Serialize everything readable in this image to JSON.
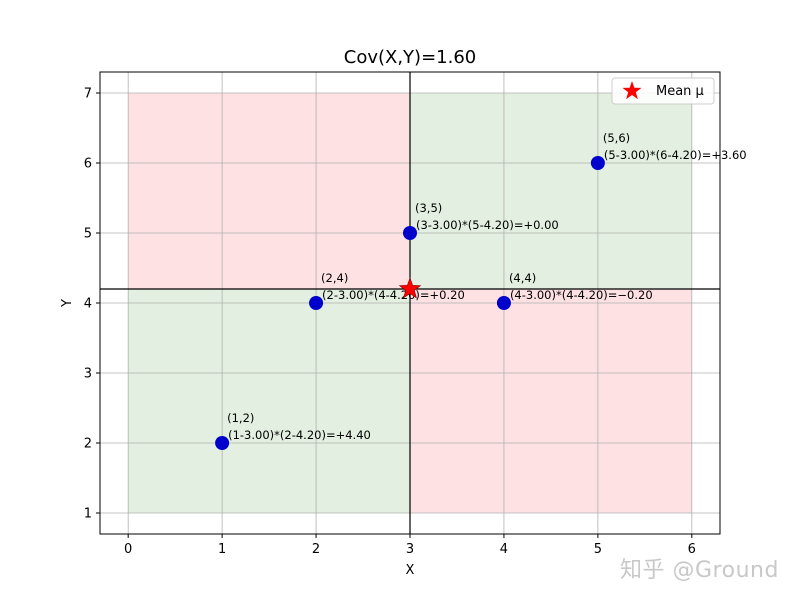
{
  "chart_data": {
    "type": "scatter",
    "title": "Cov(X,Y)=1.60",
    "xlabel": "X",
    "ylabel": "Y",
    "xlim": [
      -0.3,
      6.3
    ],
    "ylim": [
      0.7,
      7.3
    ],
    "xticks": [
      0,
      1,
      2,
      3,
      4,
      5,
      6
    ],
    "yticks": [
      1,
      2,
      3,
      4,
      5,
      6,
      7
    ],
    "grid": true,
    "legend_position": "top-right",
    "mean": {
      "x": 3.0,
      "y": 4.2,
      "label": "Mean μ",
      "color": "#ff0000"
    },
    "quadrant_extent": {
      "x": [
        0,
        6
      ],
      "y": [
        1,
        7
      ]
    },
    "quadrant_colors": {
      "positive": "#e3efe0",
      "negative": "#fde1e3"
    },
    "point_color": "#0000cc",
    "points": [
      {
        "x": 1,
        "y": 2,
        "label": "(1,2)",
        "formula": "(1-3.00)*(2-4.20)=+4.40"
      },
      {
        "x": 2,
        "y": 4,
        "label": "(2,4)",
        "formula": "(2-3.00)*(4-4.20)=+0.20"
      },
      {
        "x": 3,
        "y": 5,
        "label": "(3,5)",
        "formula": "(3-3.00)*(5-4.20)=+0.00"
      },
      {
        "x": 4,
        "y": 4,
        "label": "(4,4)",
        "formula": "(4-3.00)*(4-4.20)=−0.20"
      },
      {
        "x": 5,
        "y": 6,
        "label": "(5,6)",
        "formula": "(5-3.00)*(6-4.20)=+3.60"
      }
    ]
  },
  "watermark": "知乎 @Ground"
}
